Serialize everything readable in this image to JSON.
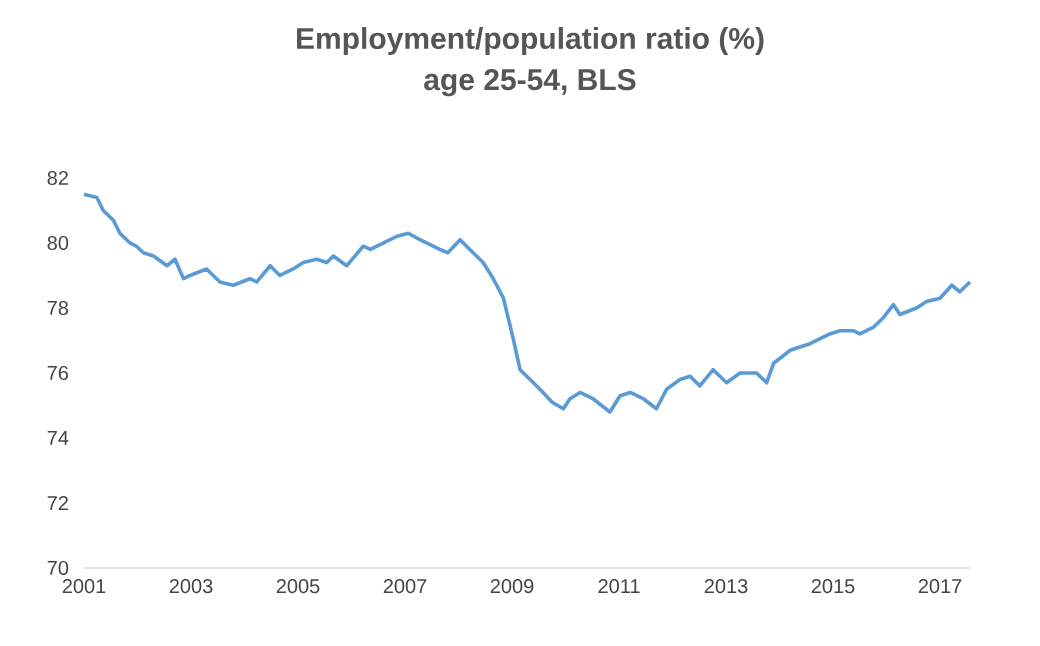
{
  "chart_data": {
    "type": "line",
    "title": "Employment/population ratio (%)",
    "subtitle": "age 25-54, BLS",
    "x": [
      2001.0,
      2001.24,
      2001.36,
      2001.55,
      2001.67,
      2001.86,
      2001.98,
      2002.11,
      2002.3,
      2002.55,
      2002.7,
      2002.86,
      2002.98,
      2003.29,
      2003.54,
      2003.79,
      2004.1,
      2004.23,
      2004.48,
      2004.66,
      2004.91,
      2005.1,
      2005.35,
      2005.54,
      2005.66,
      2005.91,
      2006.22,
      2006.35,
      2006.6,
      2006.84,
      2007.06,
      2007.28,
      2007.65,
      2007.8,
      2008.03,
      2008.21,
      2008.46,
      2008.65,
      2008.84,
      2009.03,
      2009.15,
      2009.4,
      2009.58,
      2009.75,
      2009.96,
      2010.08,
      2010.27,
      2010.52,
      2010.83,
      2011.02,
      2011.21,
      2011.46,
      2011.7,
      2011.89,
      2012.14,
      2012.33,
      2012.51,
      2012.76,
      2013.01,
      2013.26,
      2013.57,
      2013.76,
      2013.89,
      2014.2,
      2014.38,
      2014.57,
      2014.94,
      2015.13,
      2015.38,
      2015.5,
      2015.75,
      2015.94,
      2016.13,
      2016.25,
      2016.56,
      2016.75,
      2017.0,
      2017.22,
      2017.37,
      2017.56
    ],
    "series": [
      {
        "color": "#5b9bd5",
        "values": [
          81.5,
          81.4,
          81.0,
          80.7,
          80.3,
          80.0,
          79.9,
          79.7,
          79.6,
          79.3,
          79.5,
          78.9,
          79.0,
          79.2,
          78.8,
          78.7,
          78.9,
          78.8,
          79.3,
          79.0,
          79.2,
          79.4,
          79.5,
          79.4,
          79.6,
          79.3,
          79.9,
          79.8,
          80.0,
          80.2,
          80.3,
          80.1,
          79.8,
          79.7,
          80.1,
          79.8,
          79.4,
          78.9,
          78.3,
          77.0,
          76.1,
          75.7,
          75.4,
          75.1,
          74.9,
          75.2,
          75.4,
          75.2,
          74.8,
          75.3,
          75.4,
          75.2,
          74.9,
          75.5,
          75.8,
          75.9,
          75.6,
          76.1,
          75.7,
          76.0,
          76.0,
          75.7,
          76.3,
          76.7,
          76.8,
          76.9,
          77.2,
          77.3,
          77.3,
          77.2,
          77.4,
          77.7,
          78.1,
          77.8,
          78.0,
          78.2,
          78.3,
          78.7,
          78.5,
          78.8
        ]
      }
    ],
    "xlim": [
      2001,
      2017.56
    ],
    "ylim": [
      70,
      82
    ],
    "xticks": [
      2001,
      2003,
      2005,
      2007,
      2009,
      2011,
      2013,
      2015,
      2017
    ],
    "yticks": [
      70,
      72,
      74,
      76,
      78,
      80,
      82
    ],
    "grid": false,
    "marker": "none",
    "line_style": "solid"
  }
}
